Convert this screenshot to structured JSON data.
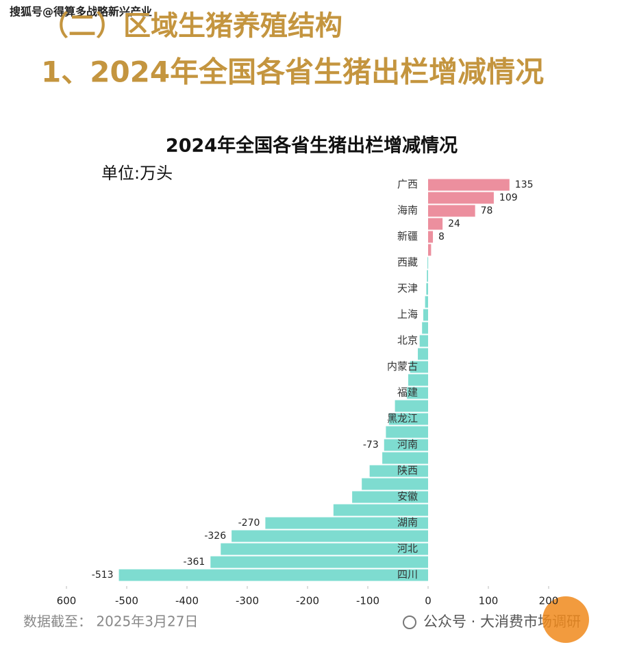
{
  "source": "搜狐号@得算多战略新兴产业",
  "section_title": "（二）区域生猪养殖结构",
  "section_subtitle": "1、2024年全国各省生猪出栏增减情况",
  "account": "公众号 · 大消费市场调研",
  "chart_data": {
    "type": "barh",
    "title": "2024年全国各省生猪出栏增减情况",
    "unit": "单位:万头",
    "note": "数据截至： 2025年3月27日",
    "categories": [
      "广西",
      null,
      "海南",
      null,
      "新疆",
      null,
      "西藏",
      null,
      "天津",
      null,
      "上海",
      null,
      "北京",
      null,
      "内蒙古",
      null,
      "福建",
      null,
      "黑龙江",
      null,
      "河南",
      null,
      "陕西",
      null,
      "安徽",
      null,
      "湖南",
      null,
      "河北",
      null,
      "四川"
    ],
    "values": [
      135,
      109,
      78,
      24,
      8,
      5,
      -1,
      -2,
      -3,
      -5,
      -8,
      -10,
      -14,
      -17,
      -30,
      -33,
      -35,
      -55,
      -65,
      -70,
      -73,
      -76,
      -97,
      -110,
      -126,
      -157,
      -270,
      -326,
      -344,
      -361,
      -513
    ],
    "value_labels": [
      "135",
      "109",
      "78",
      "24",
      "8",
      null,
      null,
      null,
      null,
      null,
      null,
      null,
      null,
      null,
      null,
      null,
      null,
      null,
      null,
      null,
      "-73",
      null,
      null,
      null,
      null,
      null,
      "-270",
      "-326",
      null,
      "-361",
      "-513"
    ],
    "colors": {
      "positive": "#ec8f9e",
      "negative": "#7edcd0"
    },
    "xlim": [
      -600,
      200
    ],
    "xticks": [
      {
        "value": -600,
        "label": "600"
      },
      -500,
      -400,
      -300,
      -200,
      -100,
      0,
      100,
      200
    ]
  }
}
